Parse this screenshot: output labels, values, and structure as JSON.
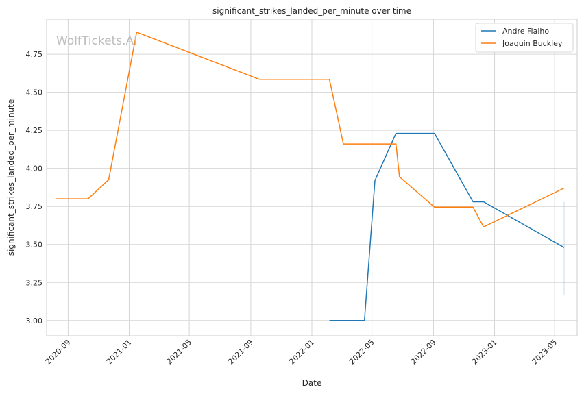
{
  "chart_data": {
    "type": "line",
    "title": "significant_strikes_landed_per_minute over time",
    "xlabel": "Date",
    "ylabel": "significant_strikes_landed_per_minute",
    "watermark": "WolfTickets.AI",
    "xlim": [
      "2020-07-20",
      "2023-06-15"
    ],
    "ylim": [
      2.9,
      4.98
    ],
    "x_ticks": [
      "2020-09",
      "2021-01",
      "2021-05",
      "2021-09",
      "2022-01",
      "2022-05",
      "2022-09",
      "2023-01",
      "2023-05"
    ],
    "y_ticks": [
      "3.00",
      "3.25",
      "3.50",
      "3.75",
      "4.00",
      "4.25",
      "4.50",
      "4.75"
    ],
    "grid": true,
    "legend": "top-right",
    "series": [
      {
        "name": "Andre Fialho",
        "color": "#1f77b4",
        "points": [
          {
            "x": "2022-02-05",
            "y": 3.0
          },
          {
            "x": "2022-04-16",
            "y": 3.0
          },
          {
            "x": "2022-05-07",
            "y": 3.92
          },
          {
            "x": "2022-06-18",
            "y": 4.23
          },
          {
            "x": "2022-09-03",
            "y": 4.23
          },
          {
            "x": "2022-11-19",
            "y": 3.78
          },
          {
            "x": "2022-12-10",
            "y": 3.78
          },
          {
            "x": "2023-05-20",
            "y": 3.48
          }
        ],
        "error_band": {
          "x": "2023-05-20",
          "low": 3.17,
          "high": 3.78
        }
      },
      {
        "name": "Joaquin Buckley",
        "color": "#ff7f0e",
        "points": [
          {
            "x": "2020-08-08",
            "y": 3.8
          },
          {
            "x": "2020-10-11",
            "y": 3.8
          },
          {
            "x": "2020-11-21",
            "y": 3.925
          },
          {
            "x": "2021-01-16",
            "y": 4.895
          },
          {
            "x": "2021-09-18",
            "y": 4.585
          },
          {
            "x": "2022-02-05",
            "y": 4.585
          },
          {
            "x": "2022-03-05",
            "y": 4.16
          },
          {
            "x": "2022-06-18",
            "y": 4.16
          },
          {
            "x": "2022-06-25",
            "y": 3.945
          },
          {
            "x": "2022-09-03",
            "y": 3.745
          },
          {
            "x": "2022-11-19",
            "y": 3.745
          },
          {
            "x": "2022-12-10",
            "y": 3.615
          },
          {
            "x": "2023-05-20",
            "y": 3.87
          }
        ]
      }
    ]
  }
}
